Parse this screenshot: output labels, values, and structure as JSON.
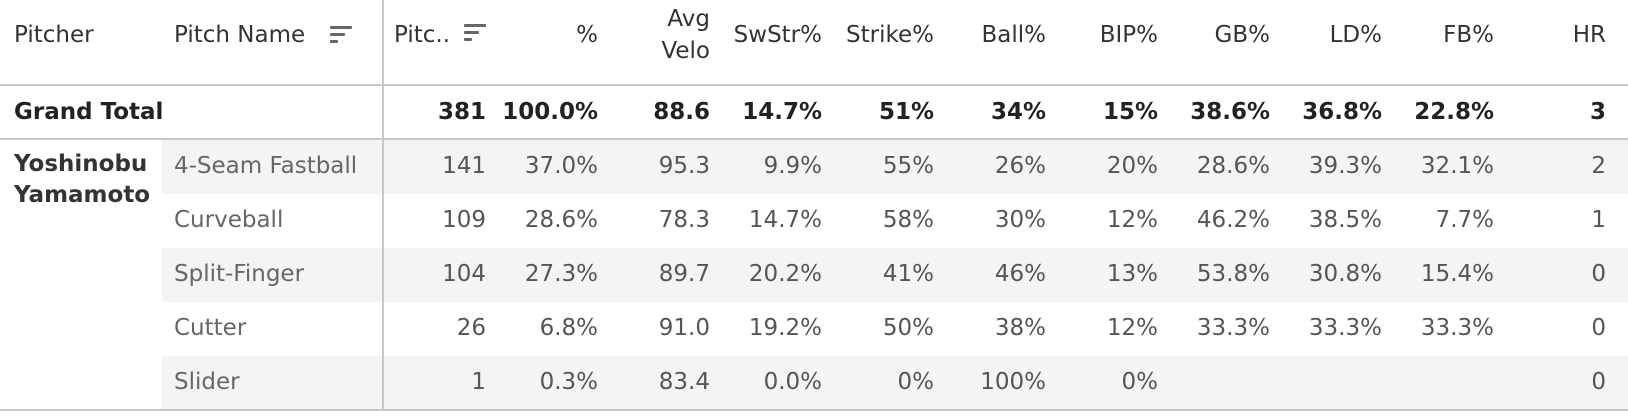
{
  "columns": [
    {
      "key": "pitcher",
      "label": "Pitcher"
    },
    {
      "key": "pitch_name",
      "label": "Pitch Name",
      "sort_icon": "sort-descending-icon"
    },
    {
      "key": "pitches",
      "label": "Pitc..",
      "sort_icon": "sort-descending-icon"
    },
    {
      "key": "pct",
      "label": "%"
    },
    {
      "key": "avg_velo",
      "label_line1": "Avg",
      "label_line2": "Velo"
    },
    {
      "key": "swstr",
      "label": "SwStr%"
    },
    {
      "key": "strike",
      "label": "Strike%"
    },
    {
      "key": "ball",
      "label": "Ball%"
    },
    {
      "key": "bip",
      "label": "BIP%"
    },
    {
      "key": "gb",
      "label": "GB%"
    },
    {
      "key": "ld",
      "label": "LD%"
    },
    {
      "key": "fb",
      "label": "FB%"
    },
    {
      "key": "hr",
      "label": "HR"
    }
  ],
  "grand_total": {
    "label": "Grand Total",
    "values": [
      "381",
      "100.0%",
      "88.6",
      "14.7%",
      "51%",
      "34%",
      "15%",
      "38.6%",
      "36.8%",
      "22.8%",
      "3"
    ]
  },
  "pitcher": {
    "name_line1": "Yoshinobu",
    "name_line2": "Yamamoto"
  },
  "rows": [
    {
      "pitch": "4-Seam Fastball",
      "values": [
        "141",
        "37.0%",
        "95.3",
        "9.9%",
        "55%",
        "26%",
        "20%",
        "28.6%",
        "39.3%",
        "32.1%",
        "2"
      ]
    },
    {
      "pitch": "Curveball",
      "values": [
        "109",
        "28.6%",
        "78.3",
        "14.7%",
        "58%",
        "30%",
        "12%",
        "46.2%",
        "38.5%",
        "7.7%",
        "1"
      ]
    },
    {
      "pitch": "Split-Finger",
      "values": [
        "104",
        "27.3%",
        "89.7",
        "20.2%",
        "41%",
        "46%",
        "13%",
        "53.8%",
        "30.8%",
        "15.4%",
        "0"
      ]
    },
    {
      "pitch": "Cutter",
      "values": [
        "26",
        "6.8%",
        "91.0",
        "19.2%",
        "50%",
        "38%",
        "12%",
        "33.3%",
        "33.3%",
        "33.3%",
        "0"
      ]
    },
    {
      "pitch": "Slider",
      "values": [
        "1",
        "0.3%",
        "83.4",
        "0.0%",
        "0%",
        "100%",
        "0%",
        "",
        "",
        "",
        "0"
      ]
    }
  ],
  "colors": {
    "band": "#f4f4f4",
    "divider": "#c8c8c8",
    "text": "#333333"
  }
}
